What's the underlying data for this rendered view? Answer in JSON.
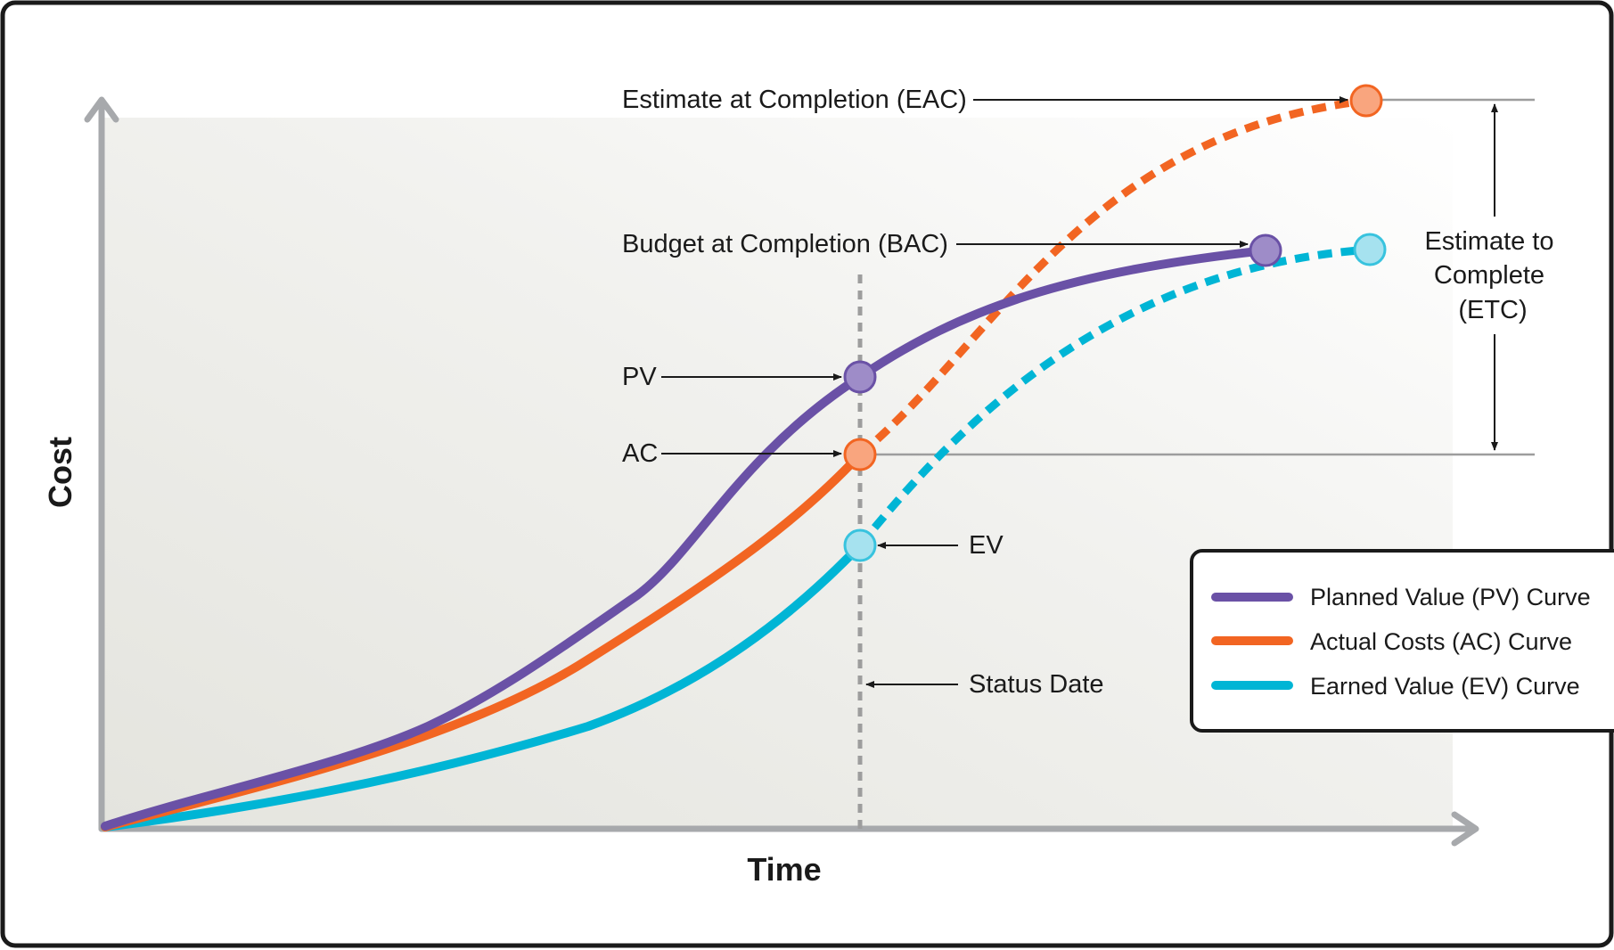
{
  "axes": {
    "x_title": "Time",
    "y_title": "Cost"
  },
  "annotations": {
    "eac": "Estimate at Completion (EAC)",
    "bac": "Budget at Completion (BAC)",
    "pv": "PV",
    "ac": "AC",
    "ev": "EV",
    "status_date": "Status Date",
    "etc_lines": [
      "Estimate to",
      "Complete",
      "(ETC)"
    ]
  },
  "legend": {
    "items": [
      {
        "label": "Planned Value (PV) Curve",
        "color": "#6a51a6"
      },
      {
        "label": "Actual Costs (AC) Curve",
        "color": "#f26522"
      },
      {
        "label": "Earned Value (EV) Curve",
        "color": "#00b5d5"
      }
    ]
  },
  "colors": {
    "pv": "#6a51a6",
    "pv_marker": "#9e8cc8",
    "ac": "#f26522",
    "ac_marker": "#f9a57e",
    "ev": "#00b5d5",
    "ev_marker": "#a6e2ef",
    "axis": "#a7a9ac",
    "guide": "#9d9d9d",
    "frame": "#1a1a1a"
  }
}
